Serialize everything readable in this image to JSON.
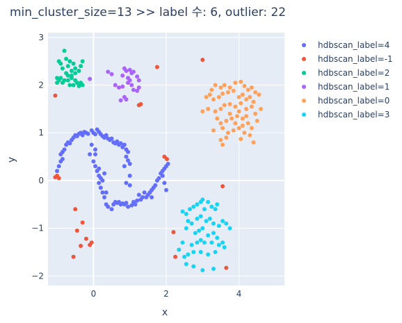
{
  "chart_data": {
    "type": "scatter",
    "title": "min_cluster_size=13 >> label 수: 6, outlier: 22",
    "xlabel": "x",
    "ylabel": "y",
    "xlim": [
      -1.25,
      5.25
    ],
    "ylim": [
      -2.2,
      3.1
    ],
    "xticks": [
      0,
      2,
      4
    ],
    "yticks": [
      -2,
      -1,
      0,
      1,
      2,
      3
    ],
    "grid": true,
    "legend_position": "right",
    "colors": {
      "plot_bg": "#e5ecf6",
      "grid": "#ffffff",
      "text": "#2a3f5f"
    },
    "series": [
      {
        "name": "hdbscan_label=4",
        "color": "#636efa",
        "points": [
          [
            -1.0,
            0.2
          ],
          [
            -0.95,
            0.3
          ],
          [
            -0.9,
            0.4
          ],
          [
            -0.85,
            0.45
          ],
          [
            -0.9,
            0.55
          ],
          [
            -0.85,
            0.6
          ],
          [
            -0.8,
            0.65
          ],
          [
            -0.75,
            0.75
          ],
          [
            -0.7,
            0.8
          ],
          [
            -0.65,
            0.78
          ],
          [
            -0.6,
            0.85
          ],
          [
            -0.55,
            0.9
          ],
          [
            -0.5,
            0.95
          ],
          [
            -0.45,
            0.93
          ],
          [
            -0.4,
            0.98
          ],
          [
            -0.35,
            1.0
          ],
          [
            -0.3,
            0.95
          ],
          [
            -0.25,
            1.02
          ],
          [
            -0.2,
            1.0
          ],
          [
            -0.15,
            0.98
          ],
          [
            -0.05,
            1.05
          ],
          [
            0.0,
            1.0
          ],
          [
            0.05,
            0.97
          ],
          [
            0.1,
            1.07
          ],
          [
            0.15,
            1.02
          ],
          [
            0.2,
            0.97
          ],
          [
            0.25,
            0.93
          ],
          [
            0.3,
            0.9
          ],
          [
            0.35,
            0.95
          ],
          [
            0.4,
            0.88
          ],
          [
            0.45,
            0.85
          ],
          [
            0.5,
            0.88
          ],
          [
            0.55,
            0.8
          ],
          [
            0.6,
            0.78
          ],
          [
            0.65,
            0.82
          ],
          [
            0.7,
            0.75
          ],
          [
            0.75,
            0.78
          ],
          [
            0.8,
            0.7
          ],
          [
            0.85,
            0.75
          ],
          [
            0.9,
            0.65
          ],
          [
            0.95,
            0.6
          ],
          [
            0.9,
            0.5
          ],
          [
            0.95,
            0.42
          ],
          [
            1.0,
            0.35
          ],
          [
            0.85,
            0.3
          ],
          [
            1.0,
            0.1
          ],
          [
            0.9,
            -0.05
          ],
          [
            1.0,
            -0.1
          ],
          [
            -0.05,
            0.75
          ],
          [
            0.05,
            0.55
          ],
          [
            0.0,
            0.4
          ],
          [
            0.05,
            0.3
          ],
          [
            0.1,
            0.2
          ],
          [
            0.15,
            0.1
          ],
          [
            0.2,
            0.05
          ],
          [
            0.15,
            -0.05
          ],
          [
            0.2,
            -0.15
          ],
          [
            0.25,
            -0.25
          ],
          [
            0.3,
            -0.35
          ],
          [
            0.35,
            -0.5
          ],
          [
            0.4,
            -0.55
          ],
          [
            0.5,
            -0.6
          ],
          [
            0.55,
            -0.5
          ],
          [
            0.6,
            -0.45
          ],
          [
            0.65,
            -0.47
          ],
          [
            0.7,
            -0.45
          ],
          [
            0.75,
            -0.5
          ],
          [
            0.8,
            -0.48
          ],
          [
            0.85,
            -0.5
          ],
          [
            0.9,
            -0.47
          ],
          [
            0.95,
            -0.55
          ],
          [
            1.05,
            -0.52
          ],
          [
            1.1,
            -0.45
          ],
          [
            1.15,
            -0.5
          ],
          [
            1.2,
            -0.42
          ],
          [
            1.3,
            -0.4
          ],
          [
            1.35,
            -0.35
          ],
          [
            1.45,
            -0.35
          ],
          [
            1.5,
            -0.3
          ],
          [
            1.55,
            -0.25
          ],
          [
            1.6,
            -0.2
          ],
          [
            1.65,
            -0.15
          ],
          [
            1.7,
            -0.1
          ],
          [
            1.75,
            0.0
          ],
          [
            1.8,
            0.05
          ],
          [
            1.85,
            0.15
          ],
          [
            1.9,
            0.2
          ],
          [
            1.95,
            0.25
          ],
          [
            2.0,
            0.3
          ],
          [
            2.05,
            0.35
          ],
          [
            1.9,
            0.1
          ],
          [
            1.95,
            -0.05
          ],
          [
            2.0,
            -0.2
          ],
          [
            1.6,
            -0.35
          ],
          [
            1.4,
            -0.25
          ],
          [
            1.25,
            -0.3
          ],
          [
            0.35,
            -0.25
          ],
          [
            0.25,
            0.0
          ],
          [
            0.3,
            0.15
          ],
          [
            0.15,
            0.25
          ],
          [
            -0.1,
            0.55
          ],
          [
            0.05,
            0.65
          ]
        ]
      },
      {
        "name": "hdbscan_label=-1",
        "color": "#ef553b",
        "points": [
          [
            -1.05,
            1.78
          ],
          [
            1.75,
            2.38
          ],
          [
            3.0,
            2.53
          ],
          [
            1.25,
            1.58
          ],
          [
            1.3,
            1.6
          ],
          [
            -1.05,
            0.07
          ],
          [
            -1.0,
            0.1
          ],
          [
            -0.95,
            0.05
          ],
          [
            1.95,
            0.5
          ],
          [
            2.02,
            0.45
          ],
          [
            -0.5,
            -0.6
          ],
          [
            -0.3,
            -0.88
          ],
          [
            -0.45,
            -1.05
          ],
          [
            -0.35,
            -1.37
          ],
          [
            -0.55,
            -1.6
          ],
          [
            -0.2,
            -1.22
          ],
          [
            -0.1,
            -1.35
          ],
          [
            -0.05,
            -1.3
          ],
          [
            2.2,
            -1.08
          ],
          [
            2.25,
            -1.6
          ],
          [
            3.55,
            -0.12
          ],
          [
            3.65,
            -1.83
          ]
        ]
      },
      {
        "name": "hdbscan_label=2",
        "color": "#00cc96",
        "points": [
          [
            -0.8,
            2.72
          ],
          [
            -0.75,
            2.55
          ],
          [
            -0.9,
            2.45
          ],
          [
            -0.95,
            2.5
          ],
          [
            -0.65,
            2.5
          ],
          [
            -0.7,
            2.4
          ],
          [
            -0.85,
            2.35
          ],
          [
            -0.6,
            2.3
          ],
          [
            -0.55,
            2.45
          ],
          [
            -0.5,
            2.35
          ],
          [
            -0.3,
            2.5
          ],
          [
            -0.35,
            2.4
          ],
          [
            -0.4,
            2.3
          ],
          [
            -0.75,
            2.25
          ],
          [
            -0.7,
            2.2
          ],
          [
            -0.6,
            2.2
          ],
          [
            -0.5,
            2.25
          ],
          [
            -1.0,
            2.15
          ],
          [
            -0.9,
            2.15
          ],
          [
            -0.8,
            2.1
          ],
          [
            -0.7,
            2.1
          ],
          [
            -0.6,
            2.15
          ],
          [
            -0.5,
            2.1
          ],
          [
            -0.45,
            2.05
          ],
          [
            -0.35,
            2.05
          ],
          [
            -0.3,
            2.0
          ],
          [
            -0.4,
            1.98
          ],
          [
            -0.95,
            2.1
          ],
          [
            -1.0,
            2.05
          ],
          [
            -0.85,
            2.05
          ],
          [
            -0.65,
            2.0
          ],
          [
            -0.55,
            2.0
          ]
        ]
      },
      {
        "name": "hdbscan_label=1",
        "color": "#ab63fa",
        "points": [
          [
            -0.1,
            2.13
          ],
          [
            0.4,
            2.28
          ],
          [
            0.5,
            2.23
          ],
          [
            0.85,
            2.35
          ],
          [
            0.9,
            2.3
          ],
          [
            1.0,
            2.32
          ],
          [
            1.05,
            2.25
          ],
          [
            1.1,
            2.28
          ],
          [
            1.2,
            2.18
          ],
          [
            1.25,
            2.1
          ],
          [
            0.6,
            2.0
          ],
          [
            0.7,
            1.95
          ],
          [
            0.8,
            1.97
          ],
          [
            0.95,
            2.05
          ],
          [
            1.0,
            2.1
          ],
          [
            1.1,
            1.9
          ],
          [
            1.2,
            1.88
          ],
          [
            1.25,
            1.95
          ],
          [
            0.85,
            1.75
          ],
          [
            0.9,
            1.7
          ],
          [
            0.75,
            1.68
          ],
          [
            0.95,
            2.15
          ],
          [
            0.8,
            2.2
          ],
          [
            1.05,
            2.0
          ]
        ]
      },
      {
        "name": "hdbscan_label=0",
        "color": "#ffa15a",
        "points": [
          [
            3.25,
            1.9
          ],
          [
            3.35,
            2.0
          ],
          [
            3.5,
            1.95
          ],
          [
            3.6,
            2.0
          ],
          [
            3.75,
            1.95
          ],
          [
            3.9,
            2.05
          ],
          [
            4.05,
            2.07
          ],
          [
            4.15,
            1.98
          ],
          [
            4.25,
            1.9
          ],
          [
            4.35,
            1.95
          ],
          [
            4.45,
            1.85
          ],
          [
            4.55,
            1.8
          ],
          [
            3.1,
            1.75
          ],
          [
            3.2,
            1.8
          ],
          [
            3.3,
            1.7
          ],
          [
            3.45,
            1.75
          ],
          [
            3.55,
            1.82
          ],
          [
            3.7,
            1.85
          ],
          [
            3.85,
            1.88
          ],
          [
            4.0,
            1.75
          ],
          [
            4.1,
            1.8
          ],
          [
            4.2,
            1.7
          ],
          [
            4.3,
            1.75
          ],
          [
            4.4,
            1.65
          ],
          [
            3.0,
            1.45
          ],
          [
            3.15,
            1.5
          ],
          [
            3.35,
            1.45
          ],
          [
            3.5,
            1.5
          ],
          [
            3.6,
            1.58
          ],
          [
            3.75,
            1.6
          ],
          [
            3.9,
            1.55
          ],
          [
            4.05,
            1.62
          ],
          [
            4.2,
            1.5
          ],
          [
            4.35,
            1.55
          ],
          [
            4.45,
            1.4
          ],
          [
            4.6,
            1.5
          ],
          [
            3.4,
            1.3
          ],
          [
            3.5,
            1.2
          ],
          [
            3.55,
            1.1
          ],
          [
            3.65,
            1.25
          ],
          [
            3.8,
            1.3
          ],
          [
            3.95,
            1.35
          ],
          [
            4.1,
            1.3
          ],
          [
            4.25,
            1.2
          ],
          [
            4.35,
            1.1
          ],
          [
            4.5,
            1.25
          ],
          [
            3.7,
            1.0
          ],
          [
            3.85,
            1.05
          ],
          [
            4.0,
            1.1
          ],
          [
            4.15,
            1.0
          ],
          [
            3.5,
            0.85
          ],
          [
            3.65,
            0.9
          ],
          [
            3.55,
            0.75
          ],
          [
            4.3,
            0.95
          ],
          [
            4.4,
            0.8
          ],
          [
            4.05,
            0.87
          ],
          [
            3.9,
            1.2
          ],
          [
            4.0,
            1.45
          ],
          [
            3.75,
            1.4
          ],
          [
            4.2,
            1.35
          ],
          [
            3.3,
            1.05
          ],
          [
            4.1,
            1.15
          ]
        ]
      },
      {
        "name": "hdbscan_label=3",
        "color": "#19d3f3",
        "points": [
          [
            2.45,
            -0.65
          ],
          [
            2.55,
            -0.7
          ],
          [
            2.65,
            -0.6
          ],
          [
            2.75,
            -0.55
          ],
          [
            2.85,
            -0.5
          ],
          [
            2.95,
            -0.45
          ],
          [
            3.0,
            -0.4
          ],
          [
            3.05,
            -0.6
          ],
          [
            3.15,
            -0.45
          ],
          [
            3.25,
            -0.55
          ],
          [
            3.35,
            -0.6
          ],
          [
            3.4,
            -0.5
          ],
          [
            2.6,
            -0.85
          ],
          [
            2.7,
            -0.9
          ],
          [
            2.85,
            -0.8
          ],
          [
            2.95,
            -0.75
          ],
          [
            3.1,
            -0.85
          ],
          [
            3.2,
            -0.8
          ],
          [
            3.3,
            -0.9
          ],
          [
            3.45,
            -0.95
          ],
          [
            3.55,
            -0.85
          ],
          [
            3.65,
            -0.9
          ],
          [
            3.75,
            -1.0
          ],
          [
            2.55,
            -1.0
          ],
          [
            2.8,
            -1.1
          ],
          [
            2.9,
            -1.05
          ],
          [
            3.0,
            -1.0
          ],
          [
            3.15,
            -1.15
          ],
          [
            3.3,
            -1.1
          ],
          [
            3.4,
            -1.2
          ],
          [
            2.45,
            -1.3
          ],
          [
            2.7,
            -1.35
          ],
          [
            2.85,
            -1.3
          ],
          [
            2.95,
            -1.25
          ],
          [
            3.05,
            -1.3
          ],
          [
            3.25,
            -1.3
          ],
          [
            3.45,
            -1.35
          ],
          [
            3.55,
            -1.3
          ],
          [
            3.6,
            -1.4
          ],
          [
            2.35,
            -1.45
          ],
          [
            2.6,
            -1.55
          ],
          [
            2.75,
            -1.5
          ],
          [
            2.95,
            -1.5
          ],
          [
            3.15,
            -1.55
          ],
          [
            3.35,
            -1.5
          ],
          [
            2.55,
            -1.75
          ],
          [
            2.75,
            -1.8
          ],
          [
            3.0,
            -1.88
          ],
          [
            3.3,
            -1.85
          ],
          [
            2.5,
            -1.6
          ]
        ]
      }
    ]
  }
}
